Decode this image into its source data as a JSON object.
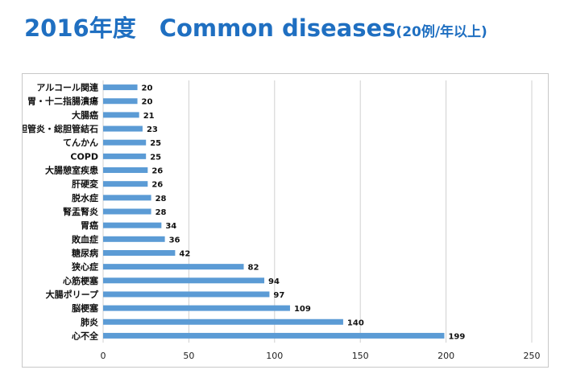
{
  "page": {
    "title_main": "2016年度　Common diseases",
    "title_sub": "(20例/年以上)"
  },
  "chart_data": {
    "type": "bar",
    "orientation": "horizontal",
    "categories": [
      "アルコール関連",
      "胃・十二指腸潰瘍",
      "大腸癌",
      "胆管炎・総胆管結石",
      "てんかん",
      "COPD",
      "大腸憩室疾患",
      "肝硬変",
      "脱水症",
      "腎盂腎炎",
      "胃癌",
      "敗血症",
      "糖尿病",
      "狭心症",
      "心筋梗塞",
      "大腸ポリープ",
      "脳梗塞",
      "肺炎",
      "心不全"
    ],
    "values": [
      20,
      20,
      21,
      23,
      25,
      25,
      26,
      26,
      28,
      28,
      34,
      36,
      42,
      82,
      94,
      97,
      109,
      140,
      199
    ],
    "xlim": [
      0,
      250
    ],
    "xticks": [
      0,
      50,
      100,
      150,
      200,
      250
    ],
    "grid": true,
    "data_labels": true,
    "bar_color": "#5b9bd5"
  }
}
